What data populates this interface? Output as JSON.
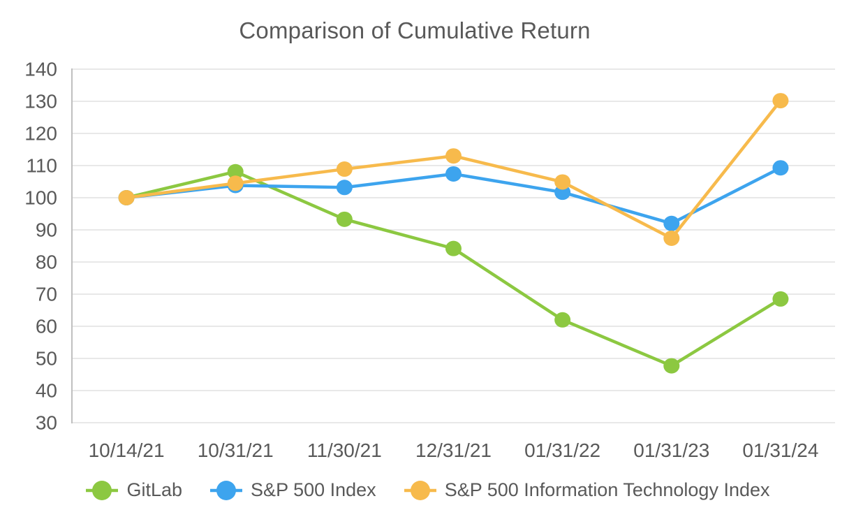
{
  "page": {
    "title": "Comparison of Cumulative Return"
  },
  "chart_data": {
    "type": "line",
    "title": "Comparison of Cumulative Return",
    "categories": [
      "10/14/21",
      "10/31/21",
      "11/30/21",
      "12/31/21",
      "01/31/22",
      "01/31/23",
      "01/31/24"
    ],
    "series": [
      {
        "name": "GitLab",
        "color": "#8CC841",
        "values": [
          100,
          108.1,
          93.3,
          84.2,
          62.0,
          47.7,
          68.5
        ]
      },
      {
        "name": "S&P 500 Index",
        "color": "#3DA4EE",
        "values": [
          100,
          103.8,
          103.2,
          107.4,
          101.7,
          92.0,
          109.3
        ]
      },
      {
        "name": "S&P 500 Information Technology Index",
        "color": "#F7BA4C",
        "values": [
          100,
          104.5,
          108.9,
          113.0,
          104.9,
          87.4,
          130.2
        ]
      }
    ],
    "ylim": [
      30,
      140
    ],
    "yticks": [
      30,
      40,
      50,
      60,
      70,
      80,
      90,
      100,
      110,
      120,
      130,
      140
    ],
    "grid": "horizontal-only",
    "legend_position": "bottom",
    "axis_color": "#BFBFBF",
    "grid_color": "#E0E0E0",
    "text_color": "#595959",
    "background_color": "#FFFFFF"
  }
}
